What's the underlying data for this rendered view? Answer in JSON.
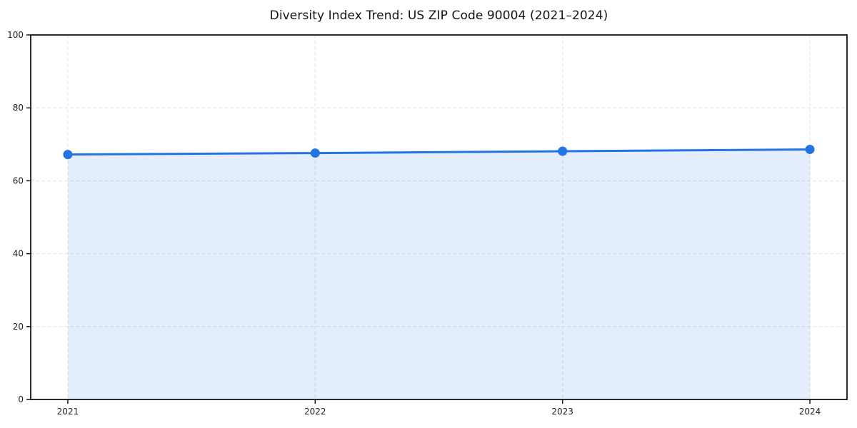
{
  "title": "Diversity Index Trend: US ZIP Code 90004 (2021–2024)",
  "chart_data": {
    "type": "area",
    "title": "Diversity Index Trend: US ZIP Code 90004 (2021–2024)",
    "x": [
      2021,
      2022,
      2023,
      2024
    ],
    "series": [
      {
        "name": "Diversity Index",
        "values": [
          67.2,
          67.6,
          68.1,
          68.6
        ]
      }
    ],
    "xlabel": "",
    "ylabel": "",
    "xlim": [
      2020.85,
      2024.15
    ],
    "ylim": [
      0,
      100
    ],
    "x_ticks": [
      "2021",
      "2022",
      "2023",
      "2024"
    ],
    "y_ticks": [
      0,
      20,
      40,
      60,
      80,
      100
    ],
    "grid": true,
    "grid_style": "dashed",
    "legend": "none",
    "colors": {
      "line": "#2274e4",
      "marker": "#2274e4",
      "fill": "rgba(34, 116, 228, 0.12)",
      "grid": "#dedede",
      "spine": "#141414",
      "tick": "#141414",
      "text": "#222222",
      "background": "#ffffff"
    }
  }
}
